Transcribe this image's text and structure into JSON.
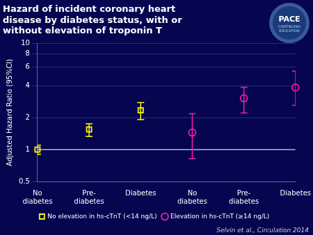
{
  "chart_data": {
    "type": "scatter",
    "title": "Hazard of incident coronary heart\ndisease by diabetes status, with or\nwithout elevation of troponin T",
    "y_label": "Adjusted Hazard Ratio (95%CI)",
    "categories": [
      "No\ndiabetes",
      "Pre-\ndiabetes",
      "Diabetes",
      "No\ndiabetes",
      "Pre-\ndiabetes",
      "Diabetes"
    ],
    "series": [
      {
        "name": "No elevation in hs-cTnT (<14 ng/L)",
        "color": "#FFFF00",
        "marker": "square",
        "values": [
          1.0,
          1.55,
          2.35,
          null,
          null,
          null
        ],
        "ci_lower": [
          0.9,
          1.33,
          1.92,
          null,
          null,
          null
        ],
        "ci_upper": [
          1.1,
          1.75,
          2.78,
          null,
          null,
          null
        ]
      },
      {
        "name": "Elevation in hs-cTnT (≥14 ng/L)",
        "color": "#FF1aAA",
        "marker": "circle",
        "values": [
          null,
          null,
          null,
          1.45,
          3.05,
          3.85
        ],
        "ci_lower": [
          null,
          null,
          null,
          0.82,
          2.22,
          2.62
        ],
        "ci_upper": [
          null,
          null,
          null,
          2.18,
          3.88,
          5.5
        ]
      }
    ],
    "reference_line": 1.0,
    "log": "y",
    "ylim": [
      0.5,
      10
    ],
    "yticks": [
      0.5,
      1,
      2,
      4,
      6,
      8,
      10
    ],
    "grid": true,
    "legend": "bottom",
    "annotations": [
      "Selvin et al., Circulation 2014",
      "PACE",
      "CONTINUING\nEDUCATION"
    ]
  }
}
